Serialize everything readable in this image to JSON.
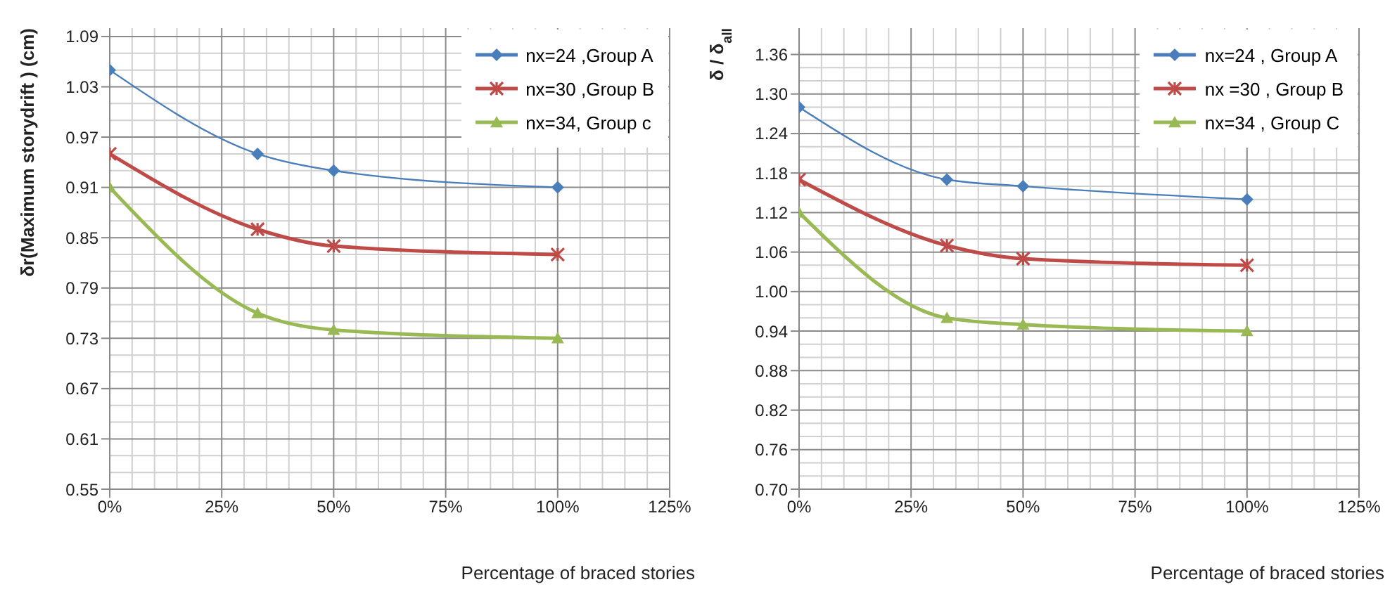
{
  "chart_data": [
    {
      "type": "line",
      "xlabel": "Percentage of braced  stories",
      "ylabel": "δr(Maximum storydrift ) (cm)",
      "x": [
        0,
        33,
        50,
        100
      ],
      "series": [
        {
          "name": "nx=24 ,Group A",
          "color": "#4a7ebb",
          "marker": "diamond",
          "values": [
            1.05,
            0.95,
            0.93,
            0.91
          ]
        },
        {
          "name": "nx=30 ,Group B",
          "color": "#be4b48",
          "marker": "cross",
          "values": [
            0.95,
            0.86,
            0.84,
            0.83
          ]
        },
        {
          "name": "nx=34, Group c",
          "color": "#98b954",
          "marker": "triangle",
          "values": [
            0.91,
            0.76,
            0.74,
            0.73
          ]
        }
      ],
      "xlim": [
        0,
        125
      ],
      "xticks": [
        {
          "value": 0,
          "label": "0%"
        },
        {
          "value": 25,
          "label": "25%"
        },
        {
          "value": 50,
          "label": "50%"
        },
        {
          "value": 75,
          "label": "75%"
        },
        {
          "value": 100,
          "label": "100%"
        },
        {
          "value": 125,
          "label": "125%"
        }
      ],
      "ylim": [
        0.55,
        1.1
      ],
      "yticks": [
        {
          "value": 0.55,
          "label": "0.55"
        },
        {
          "value": 0.61,
          "label": "0.61"
        },
        {
          "value": 0.67,
          "label": "0.67"
        },
        {
          "value": 0.73,
          "label": "0.73"
        },
        {
          "value": 0.79,
          "label": "0.79"
        },
        {
          "value": 0.85,
          "label": "0.85"
        },
        {
          "value": 0.91,
          "label": "0.91"
        },
        {
          "value": 0.97,
          "label": "0.97"
        },
        {
          "value": 1.03,
          "label": "1.03"
        },
        {
          "value": 1.09,
          "label": "1.09"
        }
      ],
      "grid": true,
      "legend": "top right"
    },
    {
      "type": "line",
      "xlabel": "Percentage of braced  stories",
      "ylabel": "δ / δ$_{all}$",
      "x": [
        0,
        33,
        50,
        100
      ],
      "series": [
        {
          "name": "nx=24 , Group A",
          "color": "#4a7ebb",
          "marker": "diamond",
          "values": [
            1.28,
            1.17,
            1.16,
            1.14
          ]
        },
        {
          "name": "nx =30 , Group B",
          "color": "#be4b48",
          "marker": "cross",
          "values": [
            1.17,
            1.07,
            1.05,
            1.04
          ]
        },
        {
          "name": "nx=34 , Group C",
          "color": "#98b954",
          "marker": "triangle",
          "values": [
            1.12,
            0.96,
            0.95,
            0.94
          ]
        }
      ],
      "xlim": [
        0,
        125
      ],
      "xticks": [
        {
          "value": 0,
          "label": "0%"
        },
        {
          "value": 25,
          "label": "25%"
        },
        {
          "value": 50,
          "label": "50%"
        },
        {
          "value": 75,
          "label": "75%"
        },
        {
          "value": 100,
          "label": "100%"
        },
        {
          "value": 125,
          "label": "125%"
        }
      ],
      "ylim": [
        0.7,
        1.4
      ],
      "yticks": [
        {
          "value": 0.7,
          "label": "0.70"
        },
        {
          "value": 0.76,
          "label": "0.76"
        },
        {
          "value": 0.82,
          "label": "0.82"
        },
        {
          "value": 0.88,
          "label": "0.88"
        },
        {
          "value": 0.94,
          "label": "0.94"
        },
        {
          "value": 1.0,
          "label": "1.00"
        },
        {
          "value": 1.06,
          "label": "1.06"
        },
        {
          "value": 1.12,
          "label": "1.12"
        },
        {
          "value": 1.18,
          "label": "1.18"
        },
        {
          "value": 1.24,
          "label": "1.24"
        },
        {
          "value": 1.3,
          "label": "1.30"
        },
        {
          "value": 1.36,
          "label": "1.36"
        }
      ],
      "grid": true,
      "legend": "top right"
    }
  ]
}
